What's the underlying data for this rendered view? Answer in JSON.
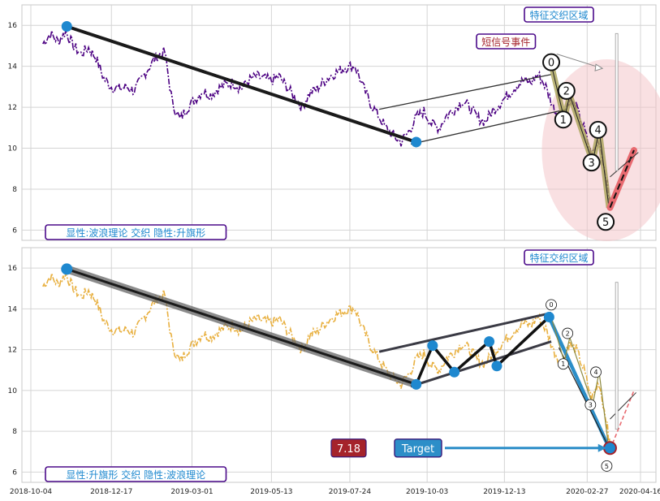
{
  "chart_data": [
    {
      "type": "line",
      "panel": "top",
      "series_color": "#4b0082",
      "ylim": [
        5.5,
        17
      ],
      "yticks": [
        "6",
        "8",
        "10",
        "12",
        "14",
        "16"
      ],
      "annotation_top_right": "特征交织区域",
      "annotation_event": "短信号事件",
      "annotation_bottom_left": "显性:波浪理论 交织 隐性:升旗形",
      "wave_labels": [
        "0",
        "1",
        "2",
        "3",
        "4",
        "5"
      ],
      "highlight_color": "#f4c2c6",
      "price": [
        [
          "2018-10-15",
          15.1
        ],
        [
          "2018-10-22",
          15.6
        ],
        [
          "2018-10-29",
          15.2
        ],
        [
          "2018-11-05",
          15.7
        ],
        [
          "2018-11-12",
          15.0
        ],
        [
          "2018-11-19",
          14.6
        ],
        [
          "2018-11-26",
          14.9
        ],
        [
          "2018-12-03",
          14.4
        ],
        [
          "2018-12-10",
          13.4
        ],
        [
          "2018-12-17",
          13.0
        ],
        [
          "2018-12-24",
          12.9
        ],
        [
          "2018-12-31",
          13.0
        ],
        [
          "2019-01-07",
          12.8
        ],
        [
          "2019-01-14",
          13.4
        ],
        [
          "2019-01-21",
          14.0
        ],
        [
          "2019-01-28",
          14.5
        ],
        [
          "2019-02-04",
          14.7
        ],
        [
          "2019-02-11",
          12.2
        ],
        [
          "2019-02-18",
          11.4
        ],
        [
          "2019-02-25",
          12.0
        ],
        [
          "2019-03-04",
          12.4
        ],
        [
          "2019-03-11",
          12.8
        ],
        [
          "2019-03-18",
          12.6
        ],
        [
          "2019-03-25",
          12.9
        ],
        [
          "2019-04-01",
          13.1
        ],
        [
          "2019-04-08",
          13.2
        ],
        [
          "2019-04-15",
          12.9
        ],
        [
          "2019-04-22",
          13.3
        ],
        [
          "2019-04-29",
          13.5
        ],
        [
          "2019-05-06",
          13.4
        ],
        [
          "2019-05-13",
          13.3
        ],
        [
          "2019-05-20",
          13.5
        ],
        [
          "2019-05-27",
          13.0
        ],
        [
          "2019-06-03",
          12.5
        ],
        [
          "2019-06-10",
          12.0
        ],
        [
          "2019-06-17",
          12.7
        ],
        [
          "2019-06-24",
          12.9
        ],
        [
          "2019-07-01",
          13.3
        ],
        [
          "2019-07-08",
          13.6
        ],
        [
          "2019-07-15",
          13.8
        ],
        [
          "2019-07-22",
          14.0
        ],
        [
          "2019-07-29",
          14.0
        ],
        [
          "2019-08-05",
          13.0
        ],
        [
          "2019-08-12",
          12.2
        ],
        [
          "2019-08-19",
          11.6
        ],
        [
          "2019-08-26",
          11.0
        ],
        [
          "2019-09-02",
          10.6
        ],
        [
          "2019-09-09",
          10.3
        ],
        [
          "2019-09-16",
          10.8
        ],
        [
          "2019-09-23",
          11.5
        ],
        [
          "2019-09-30",
          11.8
        ],
        [
          "2019-10-07",
          11.2
        ],
        [
          "2019-10-14",
          11.0
        ],
        [
          "2019-10-21",
          11.6
        ],
        [
          "2019-10-28",
          11.9
        ],
        [
          "2019-11-04",
          12.3
        ],
        [
          "2019-11-11",
          12.0
        ],
        [
          "2019-11-18",
          11.5
        ],
        [
          "2019-11-25",
          11.3
        ],
        [
          "2019-12-02",
          11.8
        ],
        [
          "2019-12-09",
          12.2
        ],
        [
          "2019-12-16",
          12.6
        ],
        [
          "2019-12-23",
          13.0
        ],
        [
          "2019-12-30",
          13.3
        ],
        [
          "2020-01-06",
          13.2
        ],
        [
          "2020-01-13",
          13.6
        ],
        [
          "2020-01-20",
          13.0
        ],
        [
          "2020-01-27",
          12.0
        ],
        [
          "2020-02-03",
          11.3
        ],
        [
          "2020-02-10",
          12.3
        ],
        [
          "2020-02-17",
          12.0
        ],
        [
          "2020-02-24",
          11.0
        ],
        [
          "2020-03-02",
          9.6
        ],
        [
          "2020-03-09",
          10.4
        ],
        [
          "2020-03-16",
          8.4
        ],
        [
          "2020-03-19",
          7.2
        ]
      ]
    },
    {
      "type": "line",
      "panel": "bottom",
      "series_color": "#e8b040",
      "ylim": [
        5.5,
        17
      ],
      "yticks": [
        "6",
        "8",
        "10",
        "12",
        "14",
        "16"
      ],
      "xticks": [
        "2018-10-04",
        "2018-12-17",
        "2019-03-01",
        "2019-05-13",
        "2019-07-24",
        "2019-10-03",
        "2019-12-13",
        "2020-02-27",
        "2020-04-16"
      ],
      "annotation_top_right": "特征交织区域",
      "annotation_bottom_left": "显性:升旗形 交织 隐性:波浪理论",
      "wave_labels": [
        "0",
        "1",
        "2",
        "3",
        "4",
        "5"
      ],
      "target_label": "Target",
      "target_value": "7.18",
      "target_color": "#2c8ec8",
      "value_badge_color": "#a5232b"
    }
  ]
}
